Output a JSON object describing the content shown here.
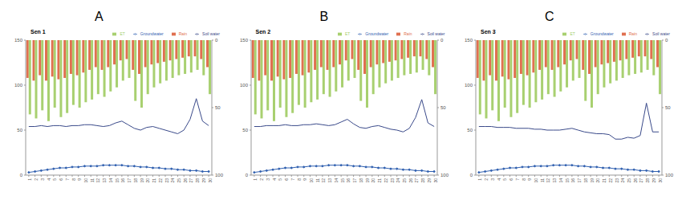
{
  "chart_data": [
    {
      "type": "combo",
      "annotation": "A",
      "title": "Sen 1",
      "categories": [
        "1",
        "2",
        "3",
        "4",
        "5",
        "6",
        "7",
        "8",
        "9",
        "10",
        "11",
        "12",
        "13",
        "14",
        "15",
        "16",
        "17",
        "18",
        "19",
        "20",
        "21",
        "22",
        "23",
        "24",
        "25",
        "26",
        "27",
        "28",
        "29",
        "30"
      ],
      "ylim": [
        0,
        150
      ],
      "yticks": [
        0,
        50,
        100,
        150
      ],
      "y2lim": [
        0,
        100
      ],
      "y2ticks": [
        0,
        50,
        100
      ],
      "legend": "upper right",
      "series": [
        {
          "name": "Rain",
          "type": "bar",
          "axis": "y2",
          "color": "#e07050",
          "values": [
            28,
            30,
            26,
            30,
            27,
            29,
            28,
            25,
            26,
            24,
            22,
            20,
            22,
            20,
            18,
            15,
            14,
            22,
            25,
            20,
            18,
            17,
            16,
            15,
            14,
            13,
            12,
            12,
            14,
            20
          ]
        },
        {
          "name": "ET",
          "type": "bar",
          "axis": "y2",
          "color": "#a8d070",
          "values": [
            55,
            58,
            52,
            60,
            50,
            57,
            54,
            48,
            50,
            46,
            44,
            40,
            42,
            38,
            35,
            30,
            28,
            45,
            50,
            40,
            35,
            32,
            30,
            28,
            26,
            25,
            24,
            22,
            26,
            40
          ]
        },
        {
          "name": "Soil water",
          "type": "line",
          "color": "#3a4a8a",
          "marker": "none",
          "line_style": "solid",
          "values": [
            54,
            54,
            55,
            54,
            55,
            55,
            54,
            55,
            55,
            56,
            56,
            55,
            54,
            55,
            58,
            60,
            56,
            52,
            50,
            53,
            54,
            52,
            50,
            48,
            46,
            50,
            62,
            85,
            60,
            55
          ]
        },
        {
          "name": "Groundwater",
          "type": "line",
          "color": "#3060b0",
          "marker": "circle",
          "line_style": "solid",
          "values": [
            3,
            4,
            5,
            6,
            7,
            8,
            8,
            9,
            9,
            10,
            10,
            10,
            11,
            11,
            11,
            11,
            10,
            10,
            9,
            9,
            8,
            8,
            7,
            7,
            6,
            6,
            5,
            5,
            4,
            4
          ]
        }
      ]
    },
    {
      "type": "combo",
      "annotation": "B",
      "title": "Sen 2",
      "categories": [
        "1",
        "2",
        "3",
        "4",
        "5",
        "6",
        "7",
        "8",
        "9",
        "10",
        "11",
        "12",
        "13",
        "14",
        "15",
        "16",
        "17",
        "18",
        "19",
        "20",
        "21",
        "22",
        "23",
        "24",
        "25",
        "26",
        "27",
        "28",
        "29",
        "30"
      ],
      "ylim": [
        0,
        150
      ],
      "yticks": [
        0,
        50,
        100,
        150
      ],
      "y2lim": [
        0,
        100
      ],
      "y2ticks": [
        0,
        50,
        100
      ],
      "legend": "upper right",
      "series": [
        {
          "name": "Rain",
          "type": "bar",
          "axis": "y2",
          "color": "#e07050",
          "values": [
            28,
            30,
            26,
            30,
            27,
            29,
            28,
            25,
            26,
            24,
            22,
            20,
            22,
            20,
            18,
            15,
            14,
            22,
            25,
            20,
            18,
            17,
            16,
            15,
            14,
            13,
            12,
            12,
            14,
            20
          ]
        },
        {
          "name": "ET",
          "type": "bar",
          "axis": "y2",
          "color": "#a8d070",
          "values": [
            55,
            58,
            52,
            60,
            50,
            57,
            54,
            48,
            50,
            46,
            44,
            40,
            42,
            38,
            35,
            30,
            28,
            45,
            50,
            40,
            35,
            32,
            30,
            28,
            26,
            25,
            24,
            22,
            26,
            40
          ]
        },
        {
          "name": "Soil water",
          "type": "line",
          "color": "#3a4a8a",
          "marker": "none",
          "line_style": "solid",
          "values": [
            54,
            54,
            55,
            55,
            55,
            56,
            55,
            55,
            56,
            56,
            57,
            56,
            55,
            56,
            59,
            62,
            57,
            53,
            52,
            54,
            55,
            53,
            51,
            50,
            48,
            52,
            64,
            84,
            58,
            54
          ]
        },
        {
          "name": "Groundwater",
          "type": "line",
          "color": "#3060b0",
          "marker": "circle",
          "line_style": "solid",
          "values": [
            3,
            4,
            5,
            6,
            7,
            8,
            8,
            9,
            9,
            10,
            10,
            10,
            11,
            11,
            11,
            11,
            10,
            10,
            9,
            9,
            8,
            8,
            7,
            7,
            6,
            6,
            5,
            5,
            4,
            4
          ]
        }
      ]
    },
    {
      "type": "combo",
      "annotation": "C",
      "title": "Sen 3",
      "categories": [
        "1",
        "2",
        "3",
        "4",
        "5",
        "6",
        "7",
        "8",
        "9",
        "10",
        "11",
        "12",
        "13",
        "14",
        "15",
        "16",
        "17",
        "18",
        "19",
        "20",
        "21",
        "22",
        "23",
        "24",
        "25",
        "26",
        "27",
        "28",
        "29",
        "30"
      ],
      "ylim": [
        0,
        150
      ],
      "yticks": [
        0,
        50,
        100,
        150
      ],
      "y2lim": [
        0,
        100
      ],
      "y2ticks": [
        0,
        50,
        100
      ],
      "legend": "upper right",
      "series": [
        {
          "name": "Rain",
          "type": "bar",
          "axis": "y2",
          "color": "#e07050",
          "values": [
            28,
            30,
            26,
            30,
            27,
            29,
            28,
            25,
            26,
            24,
            22,
            20,
            22,
            20,
            18,
            15,
            14,
            22,
            25,
            20,
            18,
            17,
            16,
            15,
            14,
            13,
            12,
            12,
            14,
            20
          ]
        },
        {
          "name": "ET",
          "type": "bar",
          "axis": "y2",
          "color": "#a8d070",
          "values": [
            55,
            58,
            52,
            60,
            50,
            57,
            54,
            48,
            50,
            46,
            44,
            40,
            42,
            38,
            35,
            30,
            28,
            45,
            50,
            40,
            35,
            32,
            30,
            28,
            26,
            25,
            24,
            22,
            26,
            40
          ]
        },
        {
          "name": "Soil water",
          "type": "line",
          "color": "#3a4a8a",
          "marker": "none",
          "line_style": "solid",
          "values": [
            54,
            54,
            54,
            53,
            53,
            53,
            52,
            52,
            52,
            51,
            51,
            50,
            50,
            50,
            51,
            52,
            50,
            48,
            47,
            46,
            46,
            45,
            40,
            40,
            42,
            41,
            44,
            80,
            48,
            48
          ]
        },
        {
          "name": "Groundwater",
          "type": "line",
          "color": "#3060b0",
          "marker": "circle",
          "line_style": "solid",
          "values": [
            3,
            4,
            5,
            6,
            7,
            8,
            8,
            9,
            9,
            10,
            10,
            10,
            11,
            11,
            11,
            11,
            10,
            10,
            9,
            9,
            8,
            8,
            7,
            7,
            6,
            6,
            5,
            5,
            4,
            4
          ]
        }
      ]
    }
  ]
}
